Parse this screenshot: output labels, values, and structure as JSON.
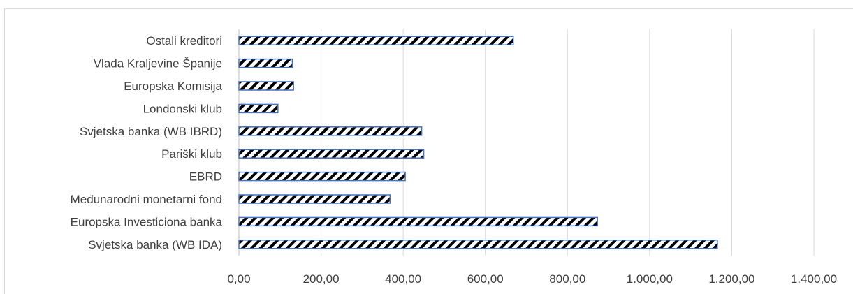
{
  "chart_data": {
    "type": "bar",
    "orientation": "horizontal",
    "categories": [
      "Ostali kreditori",
      "Vlada Kraljevine Španije",
      "Europska Komisija",
      "Londonski klub",
      "Svjetska banka  (WB IBRD)",
      "Pariški klub",
      "EBRD",
      "Međunarodni monetarni fond",
      "Europska Investiciona banka",
      "Svjetska banka  (WB IDA)"
    ],
    "values": [
      668,
      130,
      133,
      95,
      445,
      450,
      405,
      368,
      873,
      1165
    ],
    "xlim": [
      0,
      1400
    ],
    "xticks": [
      0,
      200,
      400,
      600,
      800,
      1000,
      1200,
      1400
    ],
    "xtick_labels": [
      "0,00",
      "200,00",
      "400,00",
      "600,00",
      "800,00",
      "1.000,00",
      "1.200,00",
      "1.400,00"
    ],
    "grid": true,
    "bar_pattern": "diagonal-hatch",
    "colors": {
      "bar_edge": "#4472c4",
      "hatch": "#000000",
      "grid": "#d9d9d9",
      "text": "#404040"
    },
    "title": "",
    "xlabel": "",
    "ylabel": ""
  }
}
